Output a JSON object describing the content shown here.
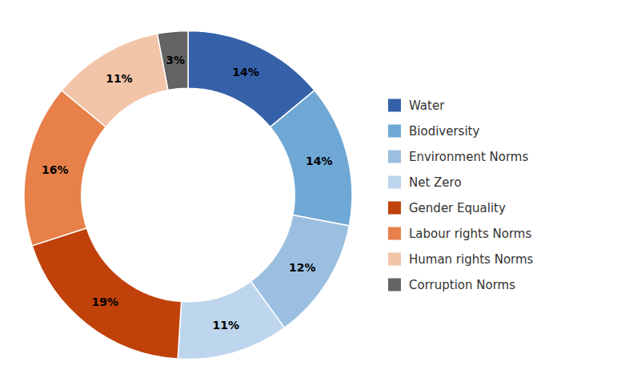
{
  "chart_data": {
    "type": "donut",
    "categories": [
      "Water",
      "Biodiversity",
      "Environment Norms",
      "Net Zero",
      "Gender Equality",
      "Labour rights Norms",
      "Human rights Norms",
      "Corruption Norms"
    ],
    "values": [
      14,
      14,
      12,
      11,
      19,
      16,
      11,
      3
    ],
    "value_labels": [
      "14%",
      "14%",
      "12%",
      "11%",
      "19%",
      "16%",
      "11%",
      "3%"
    ],
    "colors": [
      "#3461A8",
      "#6FA8D4",
      "#9BBFE0",
      "#BDD5ED",
      "#C0410A",
      "#E8804A",
      "#F2C4A8",
      "#636363"
    ],
    "data_labels": true,
    "legend": "right"
  }
}
